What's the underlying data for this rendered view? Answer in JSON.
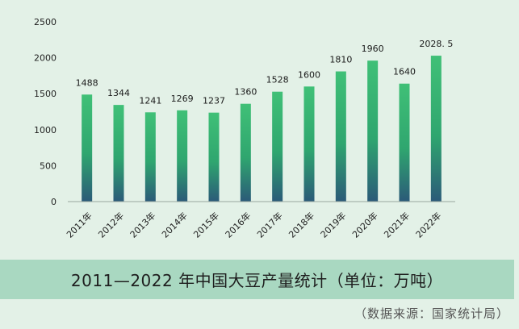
{
  "chart_data": {
    "type": "bar",
    "title": "2011—2022 年中国大豆产量统计（单位：万吨）",
    "source": "（数据来源：国家统计局）",
    "categories": [
      "2011年",
      "2012年",
      "2013年",
      "2014年",
      "2015年",
      "2016年",
      "2017年",
      "2018年",
      "2019年",
      "2020年",
      "2021年",
      "2022年"
    ],
    "values": [
      1488,
      1344,
      1241,
      1269,
      1237,
      1360,
      1528,
      1600,
      1810,
      1960,
      1640,
      2028.5
    ],
    "data_labels": [
      "1488",
      "1344",
      "1241",
      "1269",
      "1237",
      "1360",
      "1528",
      "1600",
      "1810",
      "1960",
      "1640",
      "2028. 5"
    ],
    "y_ticks": [
      0,
      500,
      1000,
      1500,
      2000,
      2500
    ],
    "ylim": [
      0,
      2500
    ],
    "xlabel": "",
    "ylabel": "",
    "grid": false,
    "colors": {
      "bar_top": "#3fbf74",
      "bar_mid": "#2ea56f",
      "bar_bottom": "#2a5f7a",
      "title_bg": "#a9d8c1",
      "page_bg": "#e3f1e7"
    }
  }
}
